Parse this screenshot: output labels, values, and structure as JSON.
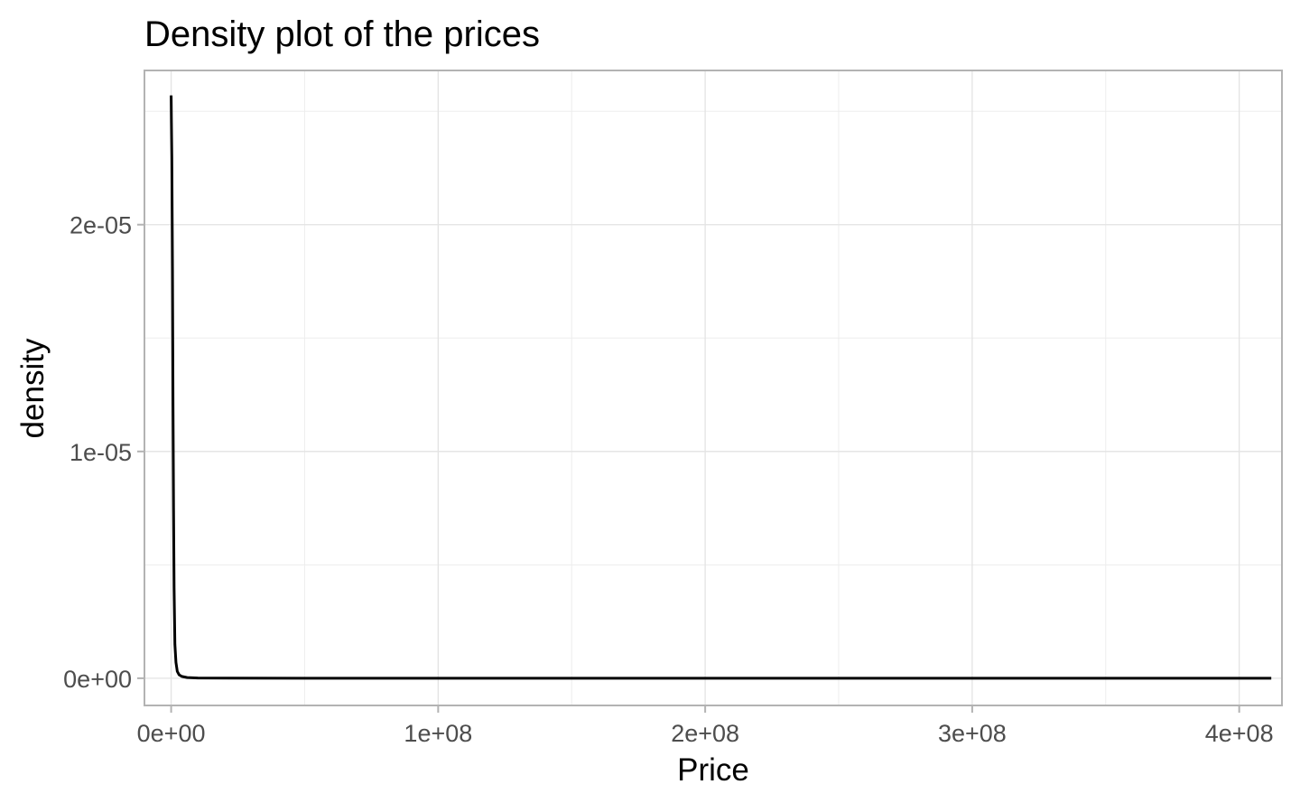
{
  "chart_data": {
    "type": "line",
    "title": "Density plot of the prices",
    "xlabel": "Price",
    "ylabel": "density",
    "xlim": [
      -10000000,
      416000000
    ],
    "ylim": [
      -1.2e-06,
      2.68e-05
    ],
    "x_ticks": [
      0,
      100000000,
      200000000,
      300000000,
      400000000
    ],
    "x_tick_labels": [
      "0e+00",
      "1e+08",
      "2e+08",
      "3e+08",
      "4e+08"
    ],
    "y_ticks": [
      0,
      1e-05,
      2e-05
    ],
    "y_tick_labels": [
      "0e+00",
      "1e-05",
      "2e-05"
    ],
    "grid": true,
    "legend": "none",
    "line_color": "#000000",
    "series": [
      {
        "x": [
          0,
          100000,
          250000,
          500000,
          700000,
          900000,
          1100000,
          1400000,
          1800000,
          2300000,
          3000000,
          4000000,
          6000000,
          10000000,
          50000000,
          150000000,
          250000000,
          350000000,
          412000000
        ],
        "y": [
          2.57e-05,
          2.45e-05,
          2.3e-05,
          1.8e-05,
          1.2e-05,
          7.5e-06,
          4e-06,
          1.5e-06,
          7e-07,
          3e-07,
          1.5e-07,
          8e-08,
          3e-08,
          1e-08,
          0,
          0,
          0,
          0,
          0
        ]
      }
    ]
  }
}
